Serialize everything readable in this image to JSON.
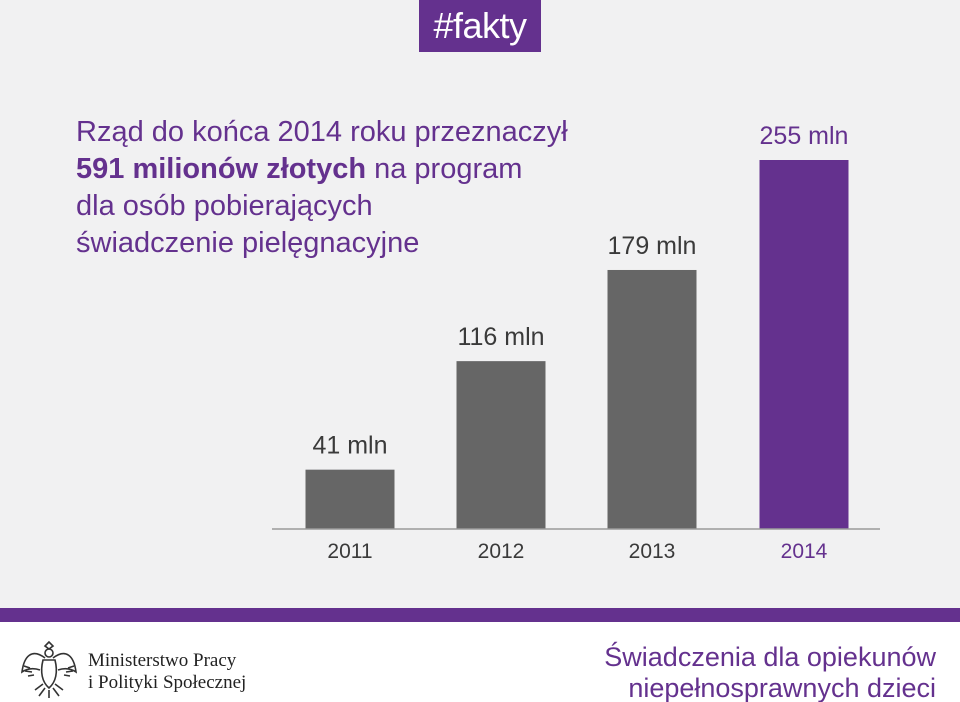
{
  "tag": "#fakty",
  "headline": {
    "line1": "Rząd do końca 2014 roku przeznaczył",
    "line2_bold": "591 milionów złotych",
    "line2_rest": " na program",
    "line3": "dla osób pobierających",
    "line4": "świadczenie pielęgnacyjne"
  },
  "chart_data": {
    "type": "bar",
    "categories": [
      "2011",
      "2012",
      "2013",
      "2014"
    ],
    "values": [
      41,
      116,
      179,
      255
    ],
    "value_labels": [
      "41 mln",
      "116 mln",
      "179 mln",
      "255 mln"
    ],
    "ylim": [
      0,
      255
    ],
    "grid": false,
    "highlight_index": 3
  },
  "colors": {
    "accent": "#64318e",
    "bar": "#666666",
    "background": "#f1f1f2"
  },
  "footer": {
    "ministry_line1": "Ministerstwo Pracy",
    "ministry_line2": "i Polityki Społecznej",
    "program_line1": "Świadczenia dla opiekunów",
    "program_line2": "niepełnosprawnych dzieci",
    "logo_icon": "eagle-emblem-icon"
  }
}
